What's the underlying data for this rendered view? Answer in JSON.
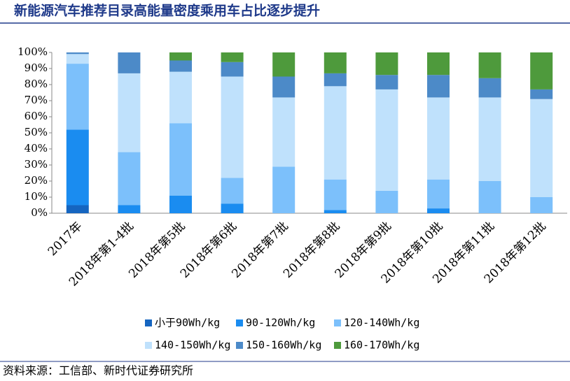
{
  "chart_data": {
    "type": "stacked_bar",
    "title": "新能源汽车推荐目录高能量密度乘用车占比逐步提升",
    "source": "资料来源：工信部、新时代证券研究所",
    "categories": [
      "2017年",
      "2018年第1-4批",
      "2018年第5批",
      "2018年第6批",
      "2018年第7批",
      "2018年第8批",
      "2018年第9批",
      "2018年第10批",
      "2018年第11批",
      "2018年第12批"
    ],
    "series": [
      {
        "name": "小于90Wh/kg",
        "color": "#1565c0",
        "values": [
          5,
          0,
          0,
          0,
          0,
          0,
          0,
          0,
          0,
          0
        ]
      },
      {
        "name": "90-120Wh/kg",
        "color": "#1a8cf0",
        "values": [
          47,
          5,
          11,
          6,
          0,
          2,
          0,
          3,
          0,
          0
        ]
      },
      {
        "name": "120-140Wh/kg",
        "color": "#7cc0fb",
        "values": [
          41,
          33,
          45,
          16,
          29,
          19,
          14,
          18,
          20,
          10
        ]
      },
      {
        "name": "140-150Wh/kg",
        "color": "#bfe1fc",
        "values": [
          6,
          49,
          32,
          63,
          43,
          58,
          63,
          51,
          52,
          61
        ]
      },
      {
        "name": "150-160Wh/kg",
        "color": "#4c8ac8",
        "values": [
          1,
          13,
          7,
          9,
          13,
          8,
          9,
          14,
          12,
          6
        ]
      },
      {
        "name": "160-170Wh/kg",
        "color": "#4e9a3c",
        "values": [
          0,
          0,
          5,
          6,
          15,
          13,
          14,
          14,
          16,
          23
        ]
      }
    ],
    "ylim": [
      0,
      100
    ],
    "yticks": [
      {
        "value": 0,
        "label": "0%"
      },
      {
        "value": 10,
        "label": "10%"
      },
      {
        "value": 20,
        "label": "20%"
      },
      {
        "value": 30,
        "label": "30%"
      },
      {
        "value": 40,
        "label": "40%"
      },
      {
        "value": 50,
        "label": "50%"
      },
      {
        "value": 60,
        "label": "60%"
      },
      {
        "value": 70,
        "label": "70%"
      },
      {
        "value": 80,
        "label": "80%"
      },
      {
        "value": 90,
        "label": "90%"
      },
      {
        "value": 100,
        "label": "100%"
      }
    ]
  }
}
